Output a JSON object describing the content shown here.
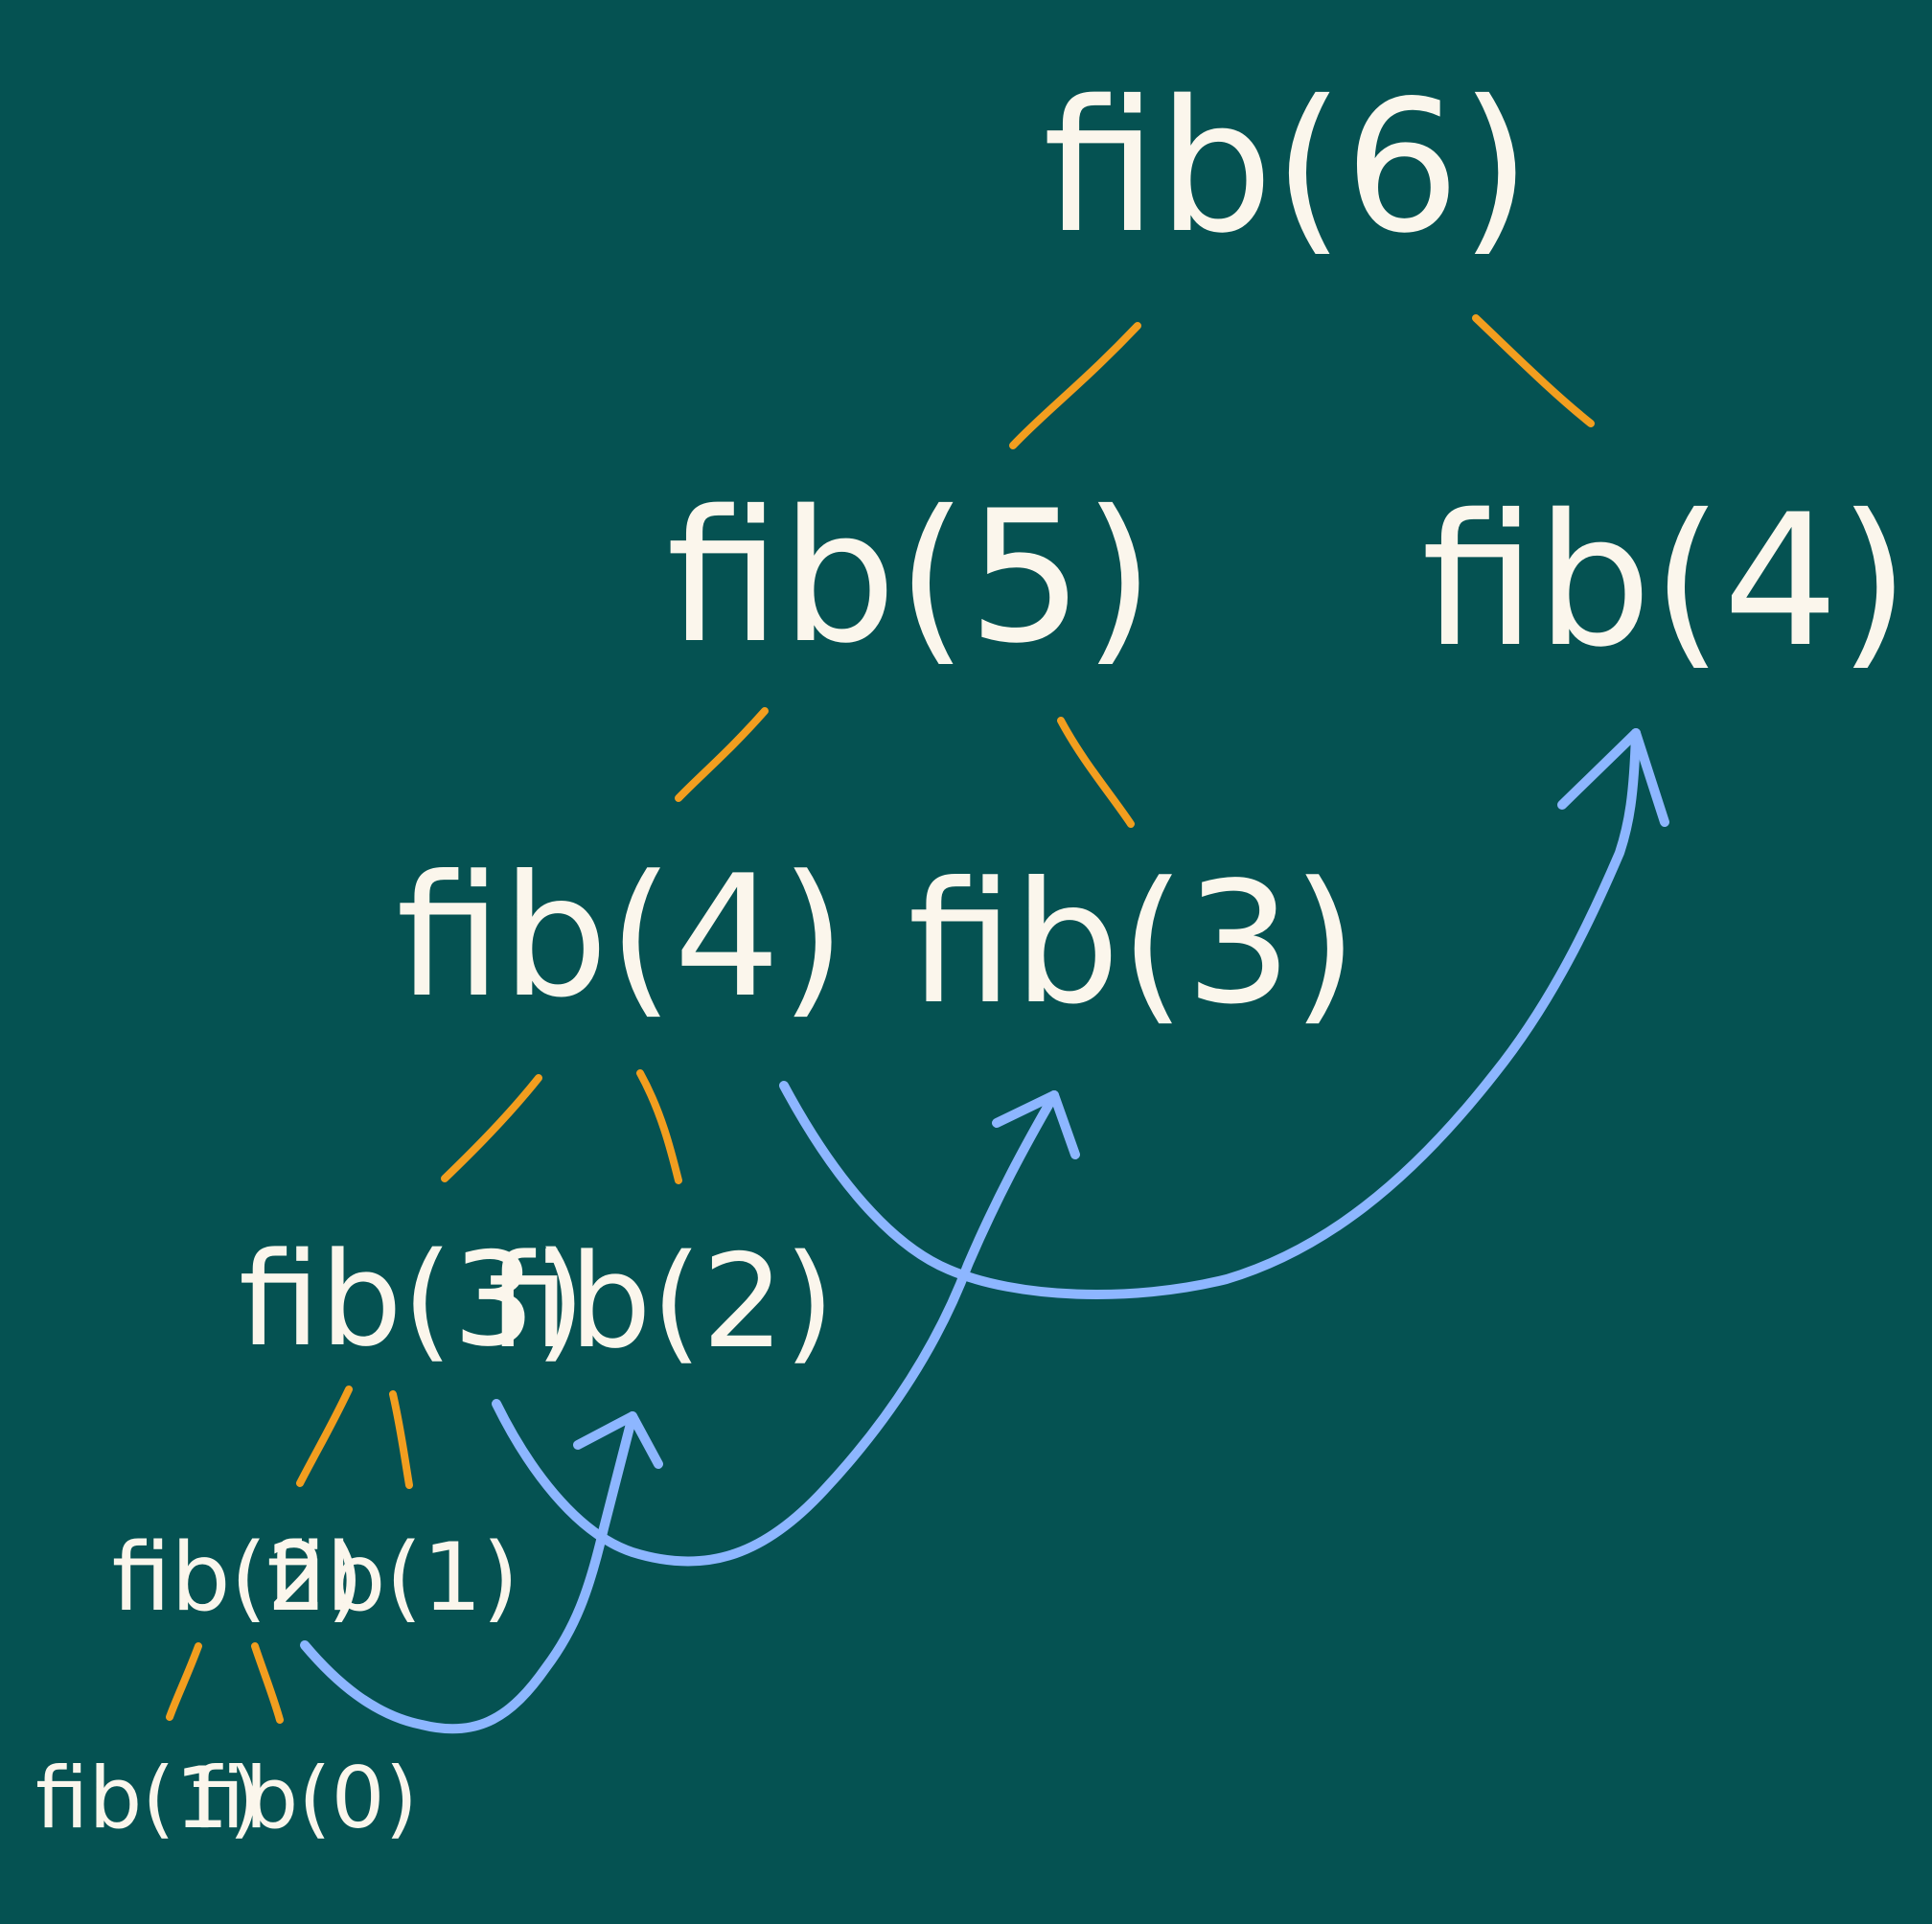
{
  "colors": {
    "background": "#055252",
    "node_text": "#FBF6EC",
    "edge": "#F29E1F",
    "arrow": "#8DB6FF"
  },
  "nodes": {
    "fib6": "fib(6)",
    "fib5": "fib(5)",
    "fib4_right": "fib(4)",
    "fib4_left": "fib(4)",
    "fib3_mid": "fib(3)",
    "fib3_left": "fib(3)",
    "fib2_mid": "fib(2)",
    "fib2_left": "fib(2)",
    "fib1_mid": "fib(1)",
    "fib1_bottom": "fib(1)",
    "fib0_bottom": "fib(0)"
  }
}
